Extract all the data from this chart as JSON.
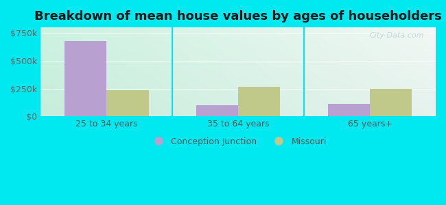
{
  "title": "Breakdown of mean house values by ages of householders",
  "categories": [
    "25 to 34 years",
    "35 to 64 years",
    "65 years+"
  ],
  "conception_junction": [
    675000,
    100000,
    115000
  ],
  "missouri": [
    237000,
    268000,
    248000
  ],
  "ylim": [
    0,
    800000
  ],
  "yticks": [
    0,
    250000,
    500000,
    750000
  ],
  "ytick_labels": [
    "$0",
    "$250k",
    "$500k",
    "$750k"
  ],
  "bar_color_cj": "#b8a0d0",
  "bar_color_mo": "#c0c88a",
  "legend_label_cj": "Conception Junction",
  "legend_label_mo": "Missouri",
  "bg_outer": "#00e8f0",
  "title_fontsize": 13,
  "tick_fontsize": 9,
  "bar_width": 0.32,
  "watermark": "City-Data.com"
}
